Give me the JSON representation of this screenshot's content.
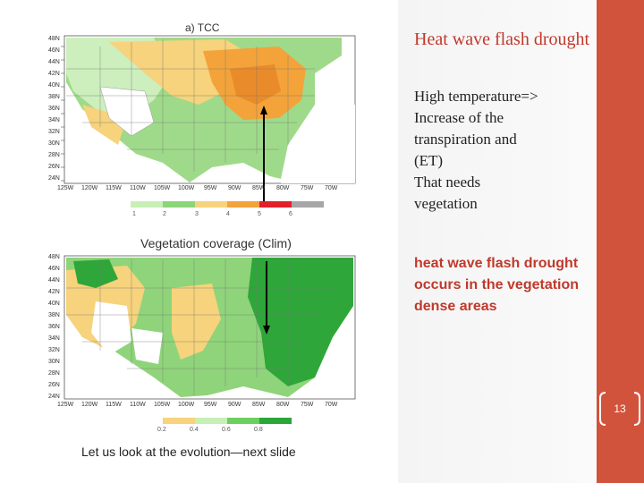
{
  "slide": {
    "title": "Heat wave flash drought",
    "body_lines": "High temperature=>\nIncrease of  the\ntranspiration  and\n(ET)\nThat needs\nvegetation",
    "highlight": " heat wave flash drought occurs in the vegetation dense areas",
    "page_number": "13",
    "accent_color": "#d2533b",
    "title_color": "#c0392b"
  },
  "map_top": {
    "label": "a)  TCC",
    "lat_labels": [
      "48N",
      "46N",
      "44N",
      "42N",
      "40N",
      "38N",
      "36N",
      "34N",
      "32N",
      "30N",
      "28N",
      "26N",
      "24N"
    ],
    "lon_labels": [
      "125W",
      "120W",
      "115W",
      "110W",
      "105W",
      "100W",
      "95W",
      "90W",
      "85W",
      "80W",
      "75W",
      "70W"
    ],
    "legend_ticks": [
      "1",
      "2",
      "3",
      "4",
      "5",
      "6"
    ],
    "legend_colors": [
      "#c7efb6",
      "#8cd57a",
      "#f6d37c",
      "#f3a33a",
      "#e2202a",
      "#a6a6a6"
    ]
  },
  "map_bottom": {
    "label": "Vegetation coverage (Clim)",
    "lat_labels": [
      "48N",
      "46N",
      "44N",
      "42N",
      "40N",
      "38N",
      "36N",
      "34N",
      "32N",
      "30N",
      "28N",
      "26N",
      "24N"
    ],
    "lon_labels": [
      "125W",
      "120W",
      "115W",
      "110W",
      "105W",
      "100W",
      "95W",
      "90W",
      "85W",
      "80W",
      "75W",
      "70W"
    ],
    "legend_ticks": [
      "0.2",
      "0.4",
      "0.6",
      "0.8"
    ],
    "legend_colors": [
      "#f6d37c",
      "#c7efb6",
      "#6ccf5f",
      "#2aa63a"
    ]
  },
  "caption": "Let us look at the evolution—next slide"
}
